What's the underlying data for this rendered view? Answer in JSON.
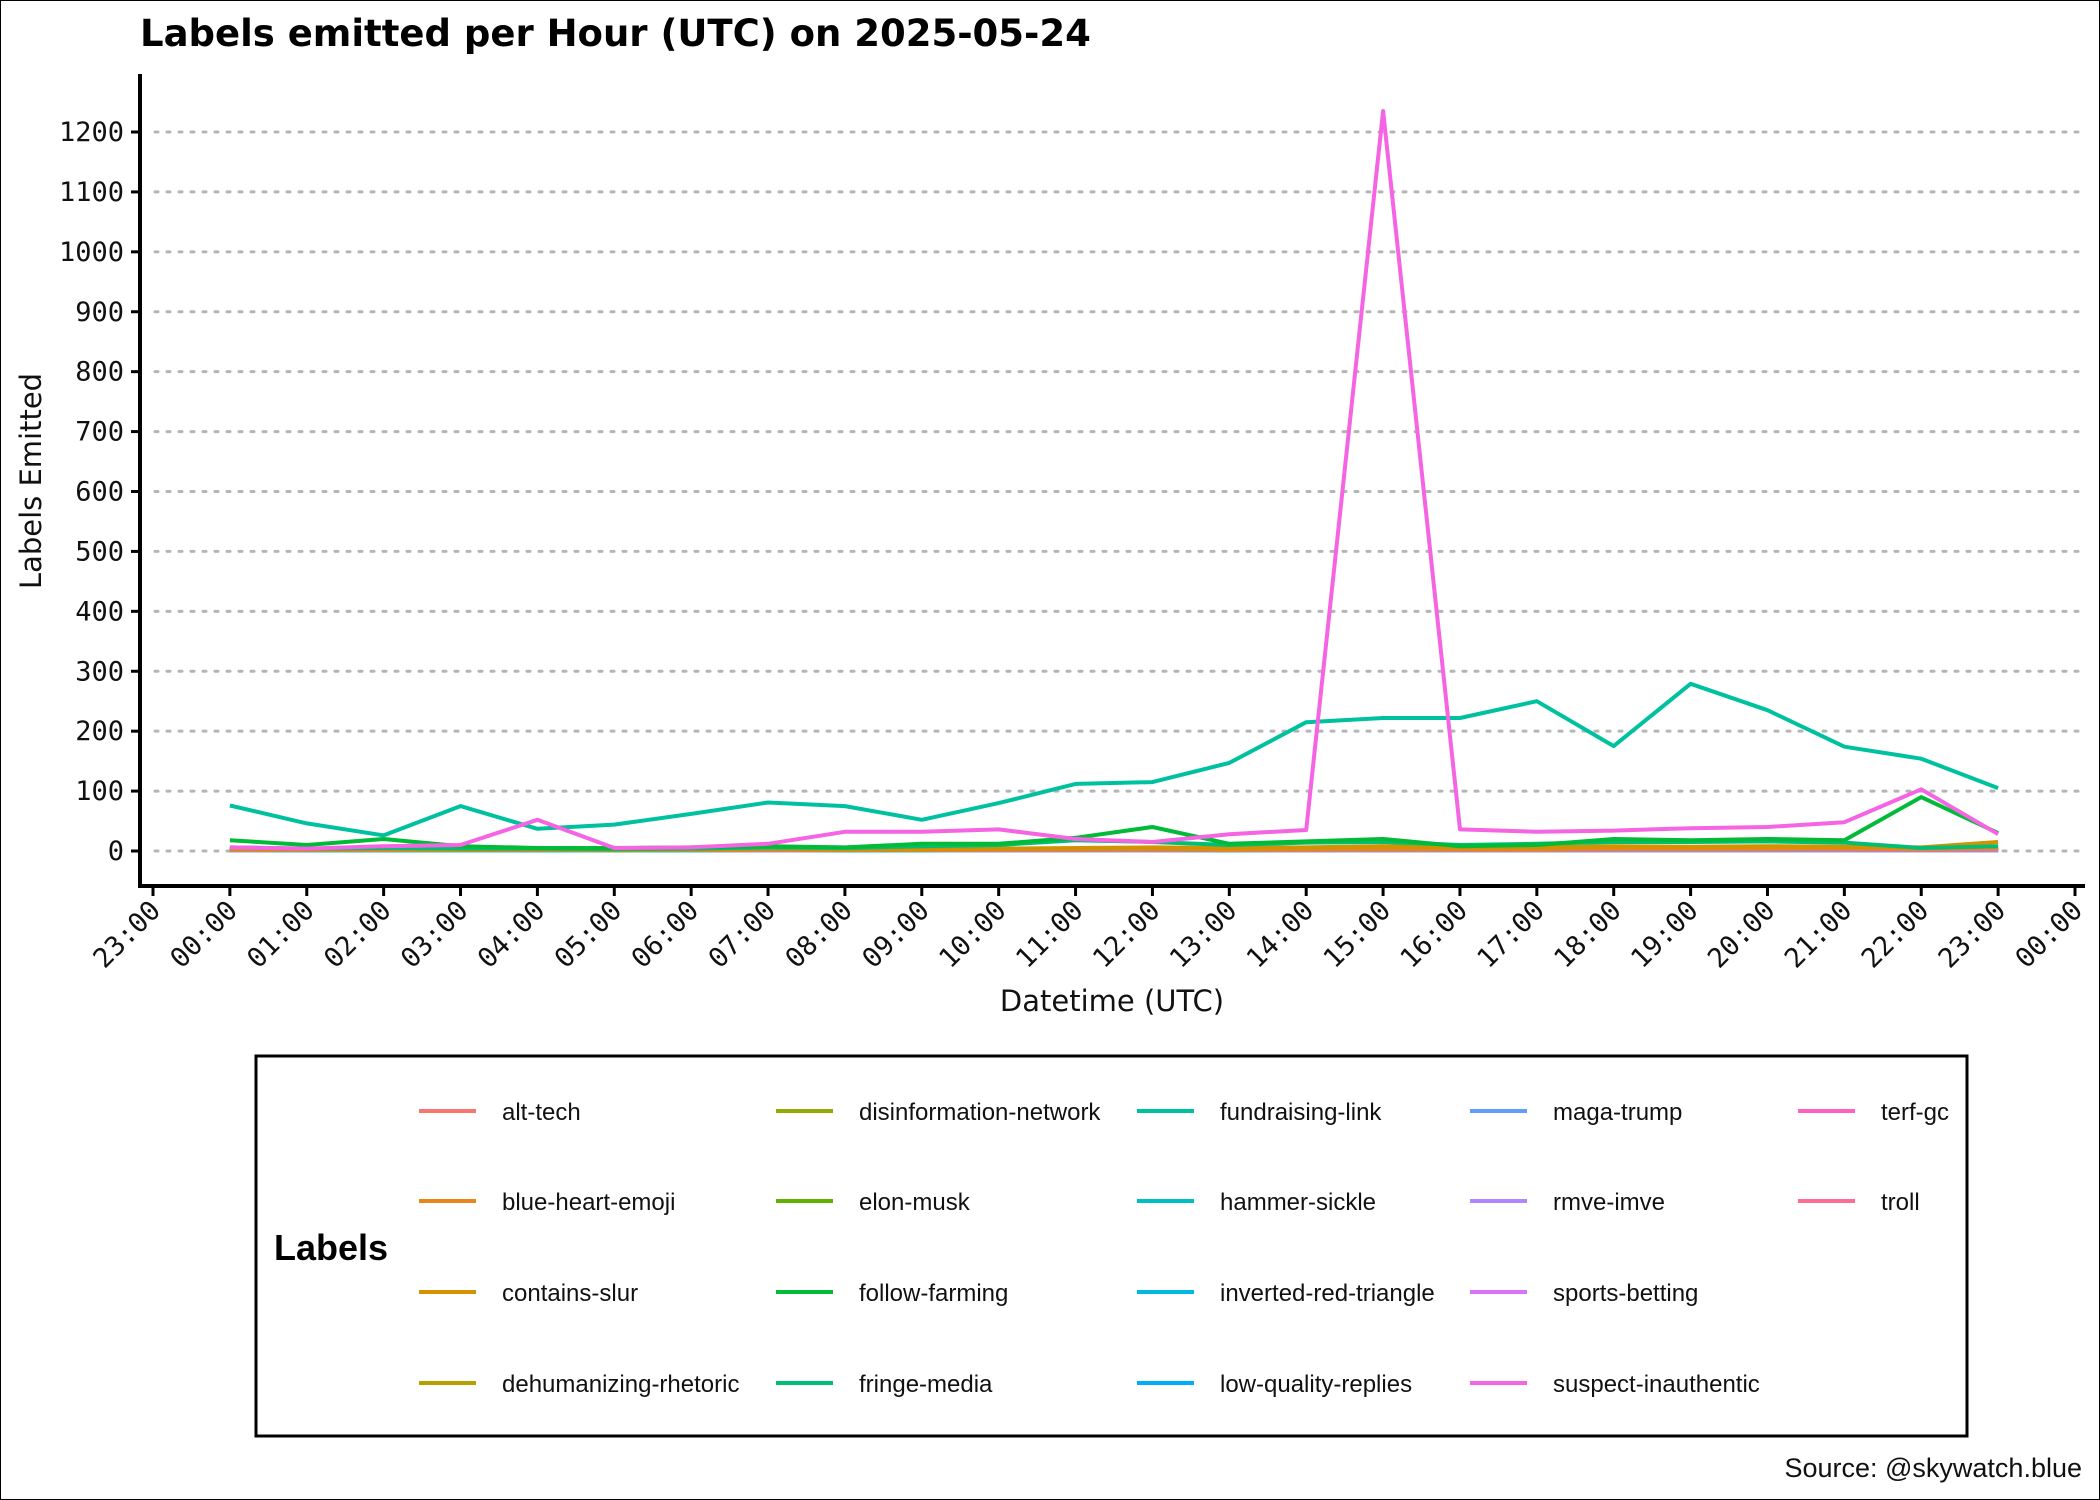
{
  "chart_data": {
    "type": "line",
    "title": "Labels emitted per Hour (UTC) on 2025-05-24",
    "xlabel": "Datetime (UTC)",
    "ylabel": "Labels Emitted",
    "x_ticks": [
      "23:00",
      "00:00",
      "01:00",
      "02:00",
      "03:00",
      "04:00",
      "05:00",
      "06:00",
      "07:00",
      "08:00",
      "09:00",
      "10:00",
      "11:00",
      "12:00",
      "13:00",
      "14:00",
      "15:00",
      "16:00",
      "17:00",
      "18:00",
      "19:00",
      "20:00",
      "21:00",
      "22:00",
      "23:00",
      "00:00"
    ],
    "y_ticks": [
      0,
      100,
      200,
      300,
      400,
      500,
      600,
      700,
      800,
      900,
      1000,
      1100,
      1200
    ],
    "xlim": [
      "2025-05-23 23:00",
      "2025-05-25 00:00"
    ],
    "ylim": [
      0,
      1200
    ],
    "grid": "horizontal dotted",
    "x": [
      "00:00",
      "01:00",
      "02:00",
      "03:00",
      "04:00",
      "05:00",
      "06:00",
      "07:00",
      "08:00",
      "09:00",
      "10:00",
      "11:00",
      "12:00",
      "13:00",
      "14:00",
      "15:00",
      "16:00",
      "17:00",
      "18:00",
      "19:00",
      "20:00",
      "21:00",
      "22:00",
      "23:00"
    ],
    "legend_title": "Labels",
    "legend_position": "bottom",
    "series": [
      {
        "name": "alt-tech",
        "color": "#F8766D",
        "values": [
          5,
          3,
          4,
          3,
          3,
          2,
          3,
          4,
          3,
          2,
          3,
          4,
          5,
          3,
          4,
          6,
          4,
          3,
          5,
          4,
          5,
          4,
          3,
          4
        ]
      },
      {
        "name": "blue-heart-emoji",
        "color": "#E7861B",
        "values": [
          3,
          2,
          3,
          2,
          2,
          2,
          2,
          3,
          2,
          2,
          3,
          3,
          3,
          2,
          3,
          3,
          3,
          3,
          4,
          4,
          4,
          5,
          4,
          6
        ]
      },
      {
        "name": "contains-slur",
        "color": "#D39200",
        "values": [
          4,
          3,
          3,
          2,
          3,
          2,
          3,
          4,
          3,
          3,
          4,
          5,
          6,
          5,
          6,
          8,
          6,
          6,
          8,
          7,
          8,
          7,
          6,
          15
        ]
      },
      {
        "name": "dehumanizing-rhetoric",
        "color": "#B79F00",
        "values": [
          2,
          2,
          2,
          2,
          2,
          1,
          2,
          2,
          2,
          2,
          2,
          3,
          3,
          2,
          3,
          3,
          3,
          3,
          3,
          3,
          3,
          3,
          2,
          3
        ]
      },
      {
        "name": "disinformation-network",
        "color": "#93AA00",
        "values": [
          2,
          2,
          2,
          2,
          2,
          2,
          2,
          2,
          2,
          2,
          2,
          2,
          2,
          2,
          2,
          2,
          2,
          2,
          2,
          2,
          2,
          2,
          2,
          2
        ]
      },
      {
        "name": "elon-musk",
        "color": "#5EB300",
        "values": [
          3,
          2,
          3,
          2,
          2,
          2,
          2,
          3,
          2,
          2,
          3,
          3,
          4,
          3,
          3,
          4,
          3,
          3,
          4,
          4,
          4,
          4,
          3,
          4
        ]
      },
      {
        "name": "follow-farming",
        "color": "#00BA38",
        "values": [
          18,
          10,
          20,
          8,
          5,
          5,
          6,
          8,
          6,
          12,
          12,
          22,
          40,
          12,
          16,
          20,
          8,
          10,
          20,
          18,
          20,
          18,
          90,
          30
        ]
      },
      {
        "name": "fringe-media",
        "color": "#00BF74",
        "values": [
          6,
          4,
          5,
          4,
          4,
          3,
          4,
          6,
          5,
          8,
          10,
          18,
          15,
          10,
          14,
          15,
          10,
          12,
          15,
          15,
          16,
          14,
          5,
          8
        ]
      },
      {
        "name": "fundraising-link",
        "color": "#00C19F",
        "values": [
          76,
          46,
          26,
          75,
          37,
          44,
          62,
          81,
          75,
          52,
          80,
          112,
          115,
          147,
          215,
          222,
          222,
          250,
          175,
          279,
          235,
          174,
          154,
          105
        ]
      },
      {
        "name": "hammer-sickle",
        "color": "#00BFC4",
        "values": [
          2,
          1,
          1,
          1,
          1,
          1,
          1,
          2,
          1,
          1,
          2,
          2,
          2,
          1,
          2,
          2,
          2,
          2,
          2,
          2,
          2,
          2,
          2,
          2
        ]
      },
      {
        "name": "inverted-red-triangle",
        "color": "#00B9E3",
        "values": [
          1,
          1,
          1,
          1,
          1,
          1,
          1,
          1,
          1,
          1,
          1,
          1,
          1,
          1,
          1,
          1,
          1,
          1,
          1,
          1,
          1,
          1,
          1,
          1
        ]
      },
      {
        "name": "low-quality-replies",
        "color": "#00ADFA",
        "values": [
          2,
          2,
          2,
          2,
          2,
          2,
          2,
          2,
          2,
          2,
          2,
          2,
          2,
          2,
          2,
          2,
          2,
          2,
          2,
          2,
          2,
          2,
          2,
          2
        ]
      },
      {
        "name": "maga-trump",
        "color": "#619CFF",
        "values": [
          3,
          3,
          3,
          3,
          3,
          2,
          3,
          3,
          3,
          3,
          4,
          4,
          4,
          3,
          4,
          5,
          4,
          4,
          4,
          4,
          4,
          4,
          3,
          4
        ]
      },
      {
        "name": "rmve-imve",
        "color": "#AE87FF",
        "values": [
          1,
          1,
          1,
          1,
          1,
          1,
          1,
          1,
          1,
          1,
          1,
          1,
          1,
          1,
          1,
          1,
          1,
          1,
          1,
          1,
          1,
          1,
          1,
          1
        ]
      },
      {
        "name": "sports-betting",
        "color": "#DB72FB",
        "values": [
          2,
          2,
          2,
          2,
          2,
          2,
          2,
          2,
          2,
          2,
          2,
          2,
          2,
          2,
          2,
          2,
          2,
          2,
          2,
          2,
          2,
          2,
          2,
          2
        ]
      },
      {
        "name": "suspect-inauthentic",
        "color": "#F564E3",
        "values": [
          6,
          4,
          8,
          10,
          52,
          5,
          6,
          12,
          32,
          32,
          36,
          20,
          15,
          28,
          35,
          1235,
          36,
          32,
          34,
          38,
          40,
          48,
          103,
          28
        ]
      },
      {
        "name": "terf-gc",
        "color": "#FF61C3",
        "values": [
          3,
          2,
          3,
          2,
          2,
          2,
          2,
          3,
          2,
          2,
          3,
          3,
          4,
          3,
          3,
          4,
          3,
          3,
          4,
          4,
          4,
          4,
          3,
          4
        ]
      },
      {
        "name": "troll",
        "color": "#FF6C91",
        "values": [
          2,
          2,
          2,
          2,
          2,
          2,
          2,
          2,
          2,
          2,
          2,
          2,
          3,
          2,
          2,
          3,
          2,
          2,
          3,
          3,
          3,
          3,
          2,
          3
        ]
      }
    ],
    "source": "Source: @skywatch.blue"
  }
}
